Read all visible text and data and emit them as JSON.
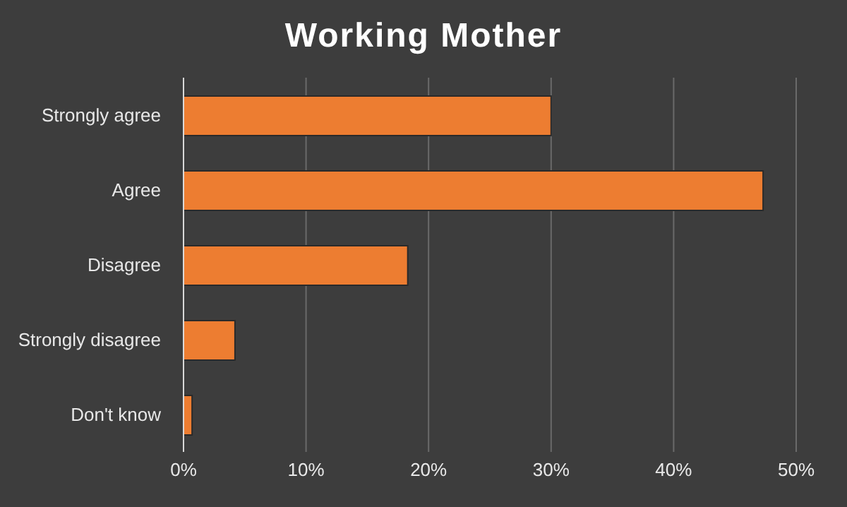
{
  "chart_data": {
    "type": "bar",
    "orientation": "horizontal",
    "title": "Working Mother",
    "categories": [
      "Strongly agree",
      "Agree",
      "Disagree",
      "Strongly disagree",
      "Don't know"
    ],
    "values": [
      30.0,
      47.3,
      18.3,
      4.2,
      0.7
    ],
    "color": "#ed7d31",
    "xlim": [
      0,
      50
    ],
    "xticks": [
      {
        "value": 0,
        "label": "0%"
      },
      {
        "value": 10,
        "label": "10%"
      },
      {
        "value": 20,
        "label": "20%"
      },
      {
        "value": 30,
        "label": "30%"
      },
      {
        "value": 40,
        "label": "40%"
      },
      {
        "value": 50,
        "label": "50%"
      }
    ],
    "grid": "x",
    "legend": false
  }
}
